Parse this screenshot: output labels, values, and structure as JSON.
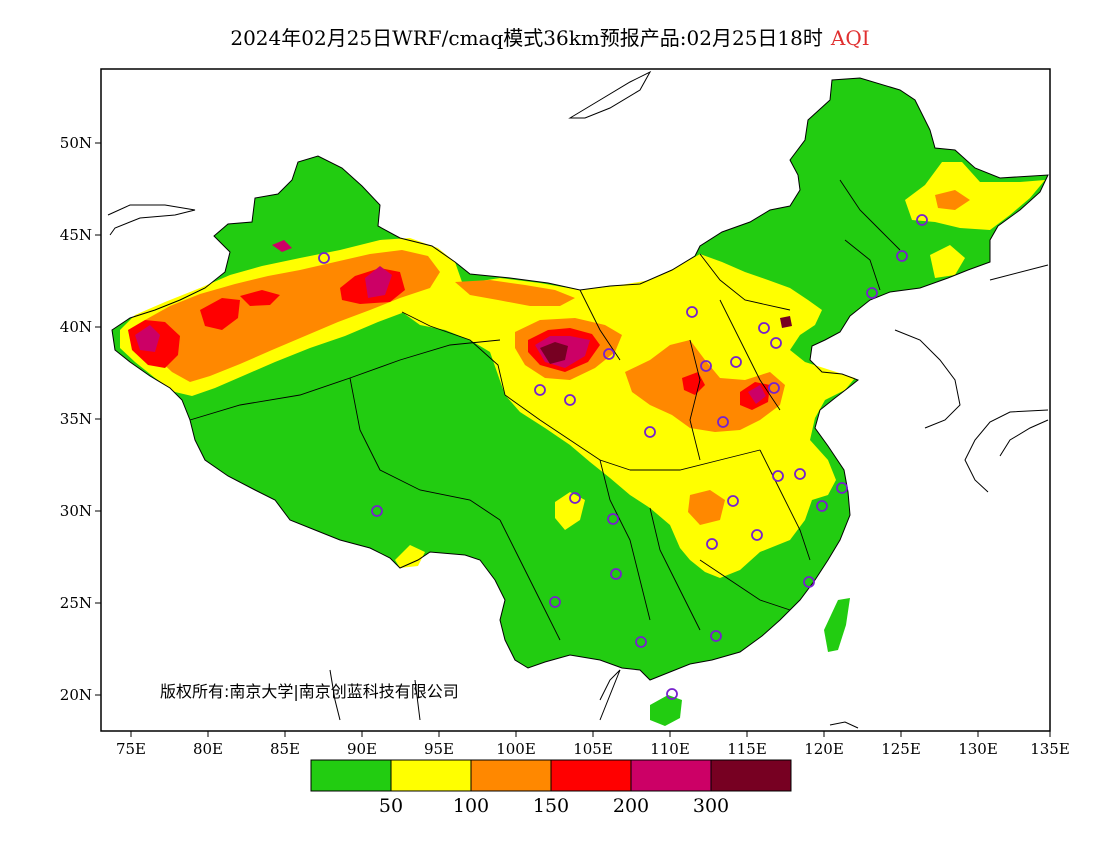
{
  "title": {
    "main": "2024年02月25日WRF/cmaq模式36km预报产品:02月25日18时",
    "variable": "AQI"
  },
  "axes": {
    "lat_ticks": [
      "50N",
      "45N",
      "40N",
      "35N",
      "30N",
      "25N",
      "20N"
    ],
    "lon_ticks": [
      "75E",
      "80E",
      "85E",
      "90E",
      "95E",
      "100E",
      "105E",
      "110E",
      "115E",
      "120E",
      "125E",
      "130E",
      "135E"
    ]
  },
  "copyright": "版权所有:南京大学|南京创蓝科技有限公司",
  "legend": {
    "colors": [
      "#22cc11",
      "#ffff00",
      "#ff8800",
      "#ff0000",
      "#cc0066",
      "#770022"
    ],
    "labels": [
      "50",
      "100",
      "150",
      "200",
      "300"
    ]
  },
  "colors": {
    "good": "#22cc11",
    "moderate": "#ffff00",
    "unhealthy_sensitive": "#ff8800",
    "unhealthy": "#ff0000",
    "very_unhealthy": "#cc0066",
    "hazardous": "#770022",
    "station_marker": "#7722cc"
  }
}
